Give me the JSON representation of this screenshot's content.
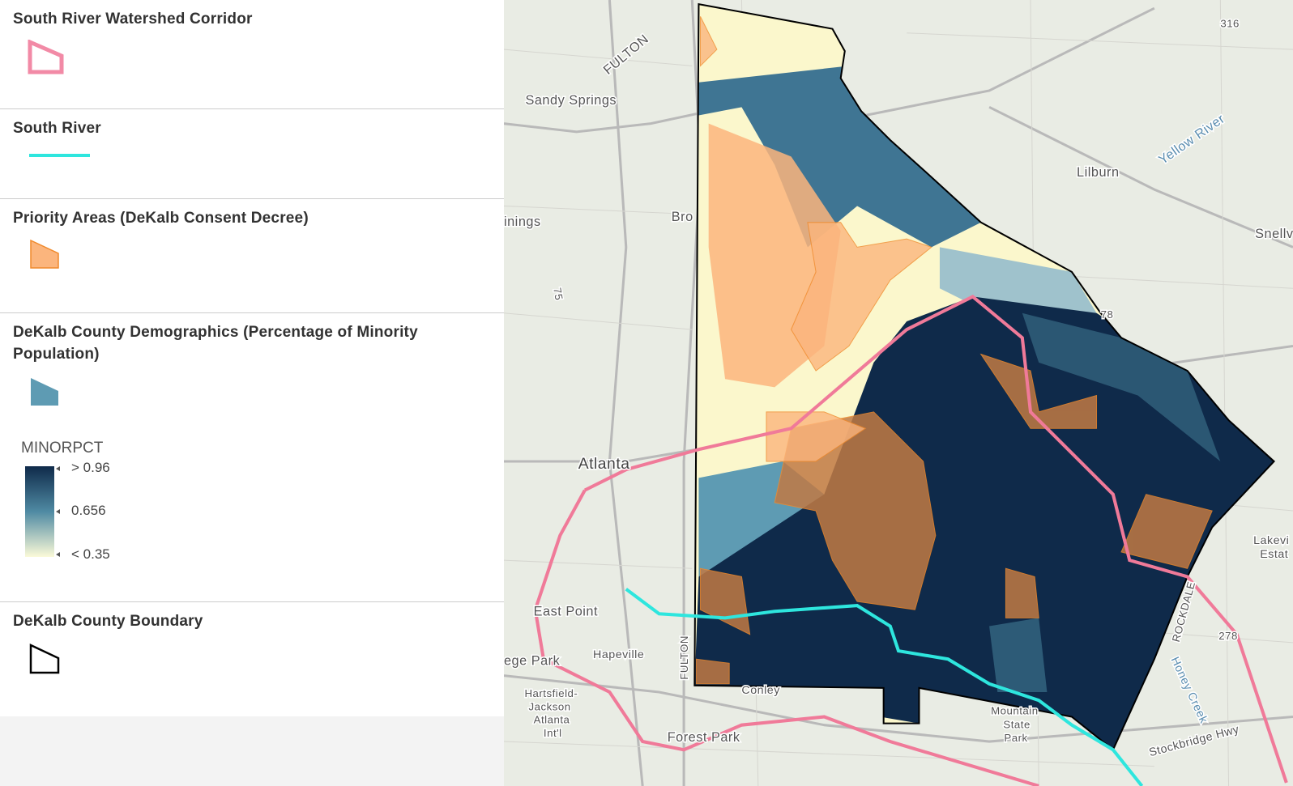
{
  "legend": {
    "layers": [
      {
        "title": "South River Watershed Corridor"
      },
      {
        "title": "South River"
      },
      {
        "title": "Priority Areas (DeKalb Consent Decree)"
      },
      {
        "title": "DeKalb County Demographics (Percentage of Minority Population)",
        "field": "MINORPCT",
        "ramp": [
          "> 0.96",
          "0.656",
          "< 0.35"
        ]
      },
      {
        "title": "DeKalb County Boundary"
      }
    ]
  },
  "map": {
    "labels": [
      "Sandy Springs",
      "FULTON",
      "Lilburn",
      "Yellow River",
      "Bro",
      "inings",
      "Snellv",
      "Atlanta",
      "East Point",
      "ege Park",
      "Hapeville",
      "Hartsfield-",
      "Jackson",
      "Atlanta",
      "Int'l",
      "Forest Park",
      "Conley",
      "Mountain",
      "State",
      "Park",
      "ROCKDALE",
      "Honey Creek",
      "Stockbridge Hwy",
      "Lakevi",
      "Estat",
      "FULTON",
      "316",
      "78",
      "278",
      "75"
    ]
  }
}
